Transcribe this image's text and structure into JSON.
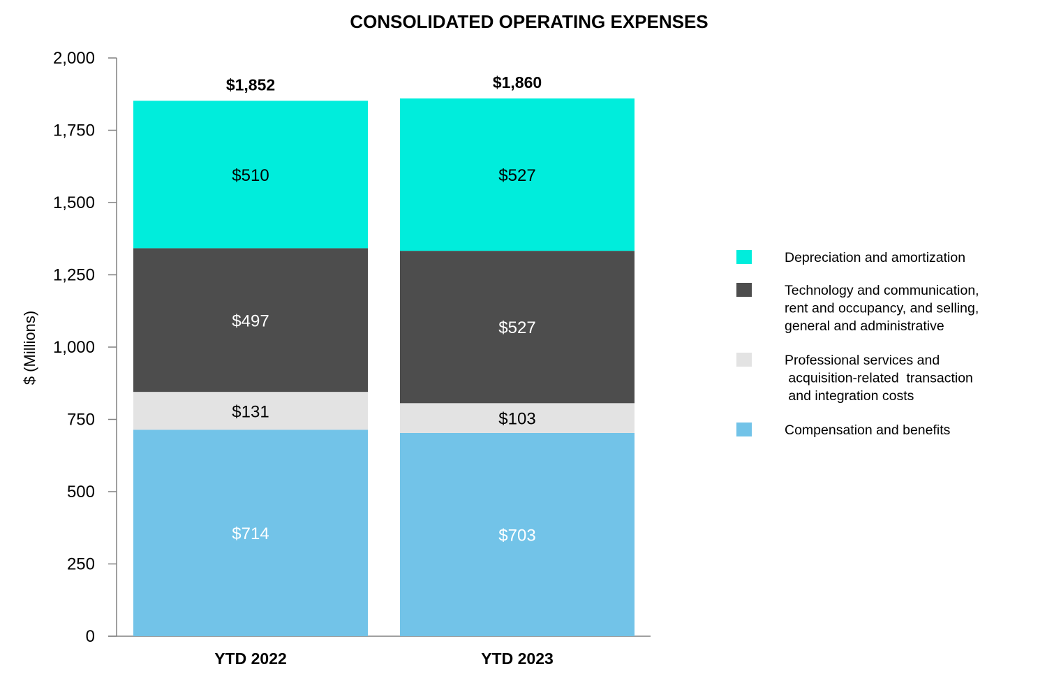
{
  "chart_data": {
    "type": "bar",
    "stacked": true,
    "title": "CONSOLIDATED OPERATING EXPENSES",
    "ylabel": "$ (Millions)",
    "xlabel": "",
    "ylim": [
      0,
      2000
    ],
    "yticks": [
      0,
      250,
      500,
      750,
      1000,
      1250,
      1500,
      1750,
      2000
    ],
    "ytick_labels": [
      "0",
      "250",
      "500",
      "750",
      "1,000",
      "1,250",
      "1,500",
      "1,750",
      "2,000"
    ],
    "categories": [
      "YTD 2022",
      "YTD 2023"
    ],
    "totals": [
      1852,
      1860
    ],
    "total_labels": [
      "$1,852",
      "$1,860"
    ],
    "series": [
      {
        "name": "Compensation and benefits",
        "color": "#72C3E8",
        "label_color": "#ffffff",
        "values": [
          714,
          703
        ],
        "labels": [
          "$714",
          "$703"
        ],
        "legend_lines": [
          "Compensation and benefits"
        ]
      },
      {
        "name": "Professional services and acquisition-related transaction and integration costs",
        "color": "#E3E3E3",
        "label_color": "#000000",
        "values": [
          131,
          103
        ],
        "labels": [
          "$131",
          "$103"
        ],
        "legend_lines": [
          "Professional services and",
          " acquisition-related  transaction",
          " and integration costs"
        ]
      },
      {
        "name": "Technology and communication, rent and occupancy, and selling, general and administrative",
        "color": "#4D4D4D",
        "label_color": "#ffffff",
        "values": [
          497,
          527
        ],
        "labels": [
          "$497",
          "$527"
        ],
        "legend_lines": [
          "Technology and communication,",
          "rent and occupancy, and selling,",
          "general and administrative"
        ]
      },
      {
        "name": "Depreciation and amortization",
        "color": "#00EDDC",
        "label_color": "#000000",
        "values": [
          510,
          527
        ],
        "labels": [
          "$510",
          "$527"
        ],
        "legend_lines": [
          "Depreciation and amortization"
        ]
      }
    ],
    "legend_order": [
      3,
      2,
      1,
      0
    ],
    "legend_position": "right"
  }
}
